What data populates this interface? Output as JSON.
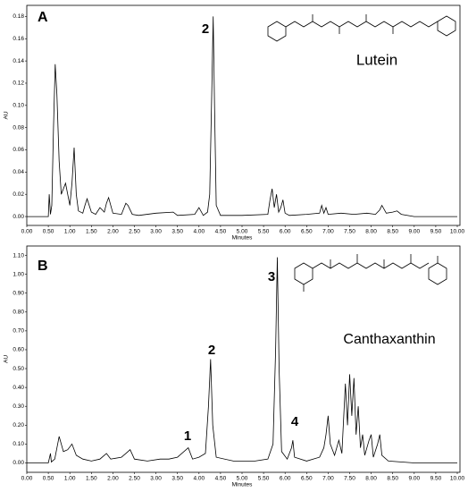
{
  "chart_data": [
    {
      "type": "line",
      "panel_label": "A",
      "x_label": "Minutes",
      "y_label": "AU",
      "annotations": [
        "2"
      ],
      "compound": "Lutein",
      "xlim": [
        0,
        10
      ],
      "ylim": [
        -0.008,
        0.19
      ],
      "xticks": [
        {
          "value": 0,
          "label": "0.00"
        },
        {
          "value": 0.5,
          "label": "0.50"
        },
        {
          "value": 1,
          "label": "1.00"
        },
        {
          "value": 1.5,
          "label": "1.50"
        },
        {
          "value": 2,
          "label": "2.00"
        },
        {
          "value": 2.5,
          "label": "2.50"
        },
        {
          "value": 3,
          "label": "3.00"
        },
        {
          "value": 3.5,
          "label": "3.50"
        },
        {
          "value": 4,
          "label": "4.00"
        },
        {
          "value": 4.5,
          "label": "4.50"
        },
        {
          "value": 5,
          "label": "5.00"
        },
        {
          "value": 5.5,
          "label": "5.50"
        },
        {
          "value": 6,
          "label": "6.00"
        },
        {
          "value": 6.5,
          "label": "6.50"
        },
        {
          "value": 7,
          "label": "7.00"
        },
        {
          "value": 7.5,
          "label": "7.50"
        },
        {
          "value": 8,
          "label": "8.00"
        },
        {
          "value": 8.5,
          "label": "8.50"
        },
        {
          "value": 9,
          "label": "9.00"
        },
        {
          "value": 9.5,
          "label": "9.50"
        },
        {
          "value": 10,
          "label": "10.00"
        }
      ],
      "yticks": [
        {
          "value": 0,
          "label": "0.00"
        },
        {
          "value": 0.02,
          "label": "0.02"
        },
        {
          "value": 0.04,
          "label": "0.04"
        },
        {
          "value": 0.06,
          "label": "0.06"
        },
        {
          "value": 0.08,
          "label": "0.08"
        },
        {
          "value": 0.1,
          "label": "0.10"
        },
        {
          "value": 0.12,
          "label": "0.12"
        },
        {
          "value": 0.14,
          "label": "0.14"
        },
        {
          "value": 0.16,
          "label": "0.16"
        },
        {
          "value": 0.18,
          "label": "0.18"
        }
      ],
      "x": [
        0,
        0.5,
        0.52,
        0.55,
        0.58,
        0.62,
        0.66,
        0.7,
        0.75,
        0.8,
        0.85,
        0.9,
        0.95,
        1.0,
        1.05,
        1.1,
        1.15,
        1.2,
        1.3,
        1.35,
        1.4,
        1.5,
        1.6,
        1.7,
        1.8,
        1.85,
        1.9,
        2.0,
        2.2,
        2.3,
        2.35,
        2.45,
        2.6,
        3.0,
        3.4,
        3.5,
        3.9,
        4.0,
        4.1,
        4.2,
        4.25,
        4.3,
        4.33,
        4.36,
        4.4,
        4.5,
        5.0,
        5.6,
        5.65,
        5.7,
        5.75,
        5.8,
        5.85,
        5.9,
        5.95,
        6.0,
        6.1,
        6.5,
        6.8,
        6.85,
        6.9,
        6.95,
        7.0,
        7.3,
        7.6,
        7.9,
        8.1,
        8.2,
        8.25,
        8.35,
        8.5,
        8.6,
        8.7,
        9.0,
        10.0
      ],
      "series": [
        {
          "color": "#000000",
          "values": [
            0,
            0,
            0.02,
            0.002,
            0.01,
            0.08,
            0.137,
            0.11,
            0.05,
            0.02,
            0.025,
            0.03,
            0.02,
            0.01,
            0.03,
            0.062,
            0.02,
            0.005,
            0.003,
            0.01,
            0.016,
            0.004,
            0.002,
            0.008,
            0.004,
            0.012,
            0.017,
            0.003,
            0.002,
            0.012,
            0.01,
            0.002,
            0.001,
            0.003,
            0.004,
            0.001,
            0.002,
            0.008,
            0.001,
            0.004,
            0.02,
            0.12,
            0.18,
            0.1,
            0.01,
            0.001,
            0.001,
            0.002,
            0.015,
            0.025,
            0.008,
            0.02,
            0.004,
            0.008,
            0.015,
            0.003,
            0.001,
            0.002,
            0.003,
            0.01,
            0.003,
            0.008,
            0.002,
            0.003,
            0.002,
            0.003,
            0.002,
            0.006,
            0.01,
            0.003,
            0.004,
            0.005,
            0.002,
            0,
            0
          ]
        }
      ]
    },
    {
      "type": "line",
      "panel_label": "B",
      "x_label": "Minutes",
      "y_label": "AU",
      "annotations": [
        "1",
        "2",
        "3",
        "4"
      ],
      "compound": "Canthaxanthin",
      "xlim": [
        0,
        10
      ],
      "ylim": [
        -0.05,
        1.15
      ],
      "xticks": [
        {
          "value": 0,
          "label": "0.00"
        },
        {
          "value": 0.5,
          "label": "0.50"
        },
        {
          "value": 1,
          "label": "1.00"
        },
        {
          "value": 1.5,
          "label": "1.50"
        },
        {
          "value": 2,
          "label": "2.00"
        },
        {
          "value": 2.5,
          "label": "2.50"
        },
        {
          "value": 3,
          "label": "3.00"
        },
        {
          "value": 3.5,
          "label": "3.50"
        },
        {
          "value": 4,
          "label": "4.00"
        },
        {
          "value": 4.5,
          "label": "4.50"
        },
        {
          "value": 5,
          "label": "5.00"
        },
        {
          "value": 5.5,
          "label": "5.50"
        },
        {
          "value": 6,
          "label": "6.00"
        },
        {
          "value": 6.5,
          "label": "6.50"
        },
        {
          "value": 7,
          "label": "7.00"
        },
        {
          "value": 7.5,
          "label": "7.50"
        },
        {
          "value": 8,
          "label": "8.00"
        },
        {
          "value": 8.5,
          "label": "8.50"
        },
        {
          "value": 9,
          "label": "9.00"
        },
        {
          "value": 9.5,
          "label": "9.50"
        },
        {
          "value": 10,
          "label": "10.00"
        }
      ],
      "yticks": [
        {
          "value": 0,
          "label": "0.00"
        },
        {
          "value": 0.1,
          "label": "0.10"
        },
        {
          "value": 0.2,
          "label": "0.20"
        },
        {
          "value": 0.3,
          "label": "0.30"
        },
        {
          "value": 0.4,
          "label": "0.40"
        },
        {
          "value": 0.5,
          "label": "0.50"
        },
        {
          "value": 0.6,
          "label": "0.60"
        },
        {
          "value": 0.7,
          "label": "0.70"
        },
        {
          "value": 0.8,
          "label": "0.80"
        },
        {
          "value": 0.9,
          "label": "0.90"
        },
        {
          "value": 1,
          "label": "1.00"
        },
        {
          "value": 1.1,
          "label": "1.10"
        }
      ],
      "x": [
        0,
        0.5,
        0.55,
        0.57,
        0.65,
        0.75,
        0.85,
        0.95,
        1.05,
        1.15,
        1.3,
        1.5,
        1.7,
        1.85,
        1.95,
        2.2,
        2.3,
        2.4,
        2.5,
        2.8,
        3.1,
        3.3,
        3.5,
        3.75,
        3.85,
        4.0,
        4.15,
        4.22,
        4.27,
        4.32,
        4.4,
        4.8,
        5.3,
        5.6,
        5.72,
        5.78,
        5.82,
        5.86,
        5.92,
        6.05,
        6.15,
        6.18,
        6.22,
        6.5,
        6.8,
        6.9,
        6.95,
        7.0,
        7.05,
        7.15,
        7.25,
        7.32,
        7.4,
        7.45,
        7.5,
        7.55,
        7.6,
        7.65,
        7.7,
        7.75,
        7.8,
        7.85,
        7.95,
        8.0,
        8.05,
        8.15,
        8.2,
        8.25,
        8.4,
        9.0,
        10.0
      ],
      "series": [
        {
          "color": "#000000",
          "values": [
            0,
            0,
            0.05,
            0.005,
            0.02,
            0.14,
            0.06,
            0.07,
            0.1,
            0.04,
            0.02,
            0.01,
            0.02,
            0.05,
            0.02,
            0.03,
            0.05,
            0.07,
            0.02,
            0.01,
            0.02,
            0.02,
            0.03,
            0.08,
            0.02,
            0.03,
            0.05,
            0.3,
            0.55,
            0.2,
            0.03,
            0.01,
            0.01,
            0.02,
            0.1,
            0.6,
            1.09,
            0.5,
            0.06,
            0.02,
            0.08,
            0.12,
            0.03,
            0.01,
            0.03,
            0.08,
            0.15,
            0.25,
            0.1,
            0.04,
            0.12,
            0.05,
            0.42,
            0.2,
            0.47,
            0.25,
            0.45,
            0.15,
            0.3,
            0.08,
            0.15,
            0.04,
            0.12,
            0.15,
            0.03,
            0.1,
            0.15,
            0.04,
            0.01,
            0,
            0
          ]
        }
      ]
    }
  ]
}
